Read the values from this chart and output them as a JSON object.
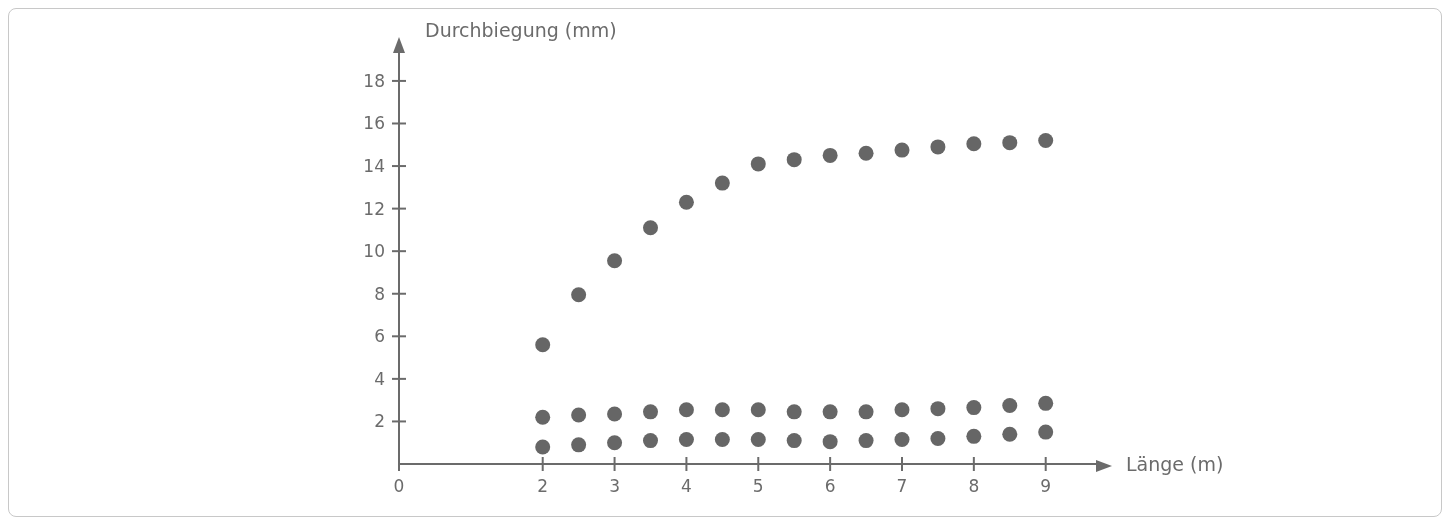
{
  "chart_data": {
    "type": "scatter",
    "xlabel": "Länge (m)",
    "ylabel": "Durchbiegung (mm)",
    "x": [
      2,
      2.5,
      3,
      3.5,
      4,
      4.5,
      5,
      5.5,
      6,
      6.5,
      7,
      7.5,
      8,
      8.5,
      9
    ],
    "series": [
      {
        "color": "#666666",
        "values": [
          5.6,
          7.95,
          9.55,
          11.1,
          12.3,
          13.2,
          14.1,
          14.3,
          14.5,
          14.6,
          14.75,
          14.9,
          15.05,
          15.1,
          15.2
        ]
      },
      {
        "color": "#666666",
        "values": [
          2.2,
          2.3,
          2.35,
          2.45,
          2.55,
          2.55,
          2.55,
          2.45,
          2.45,
          2.45,
          2.55,
          2.6,
          2.65,
          2.75,
          2.85
        ]
      },
      {
        "color": "#666666",
        "values": [
          0.8,
          0.9,
          1,
          1.1,
          1.15,
          1.15,
          1.15,
          1.1,
          1.05,
          1.1,
          1.15,
          1.2,
          1.3,
          1.4,
          1.5
        ]
      }
    ],
    "xlim": [
      0,
      9.7
    ],
    "xticks": [
      0,
      2,
      3,
      4,
      5,
      6,
      7,
      8,
      9
    ],
    "ylim": [
      0,
      19.5
    ],
    "yticks": [
      2,
      4,
      6,
      8,
      10,
      12,
      14,
      16,
      18
    ],
    "marker": "circle"
  }
}
